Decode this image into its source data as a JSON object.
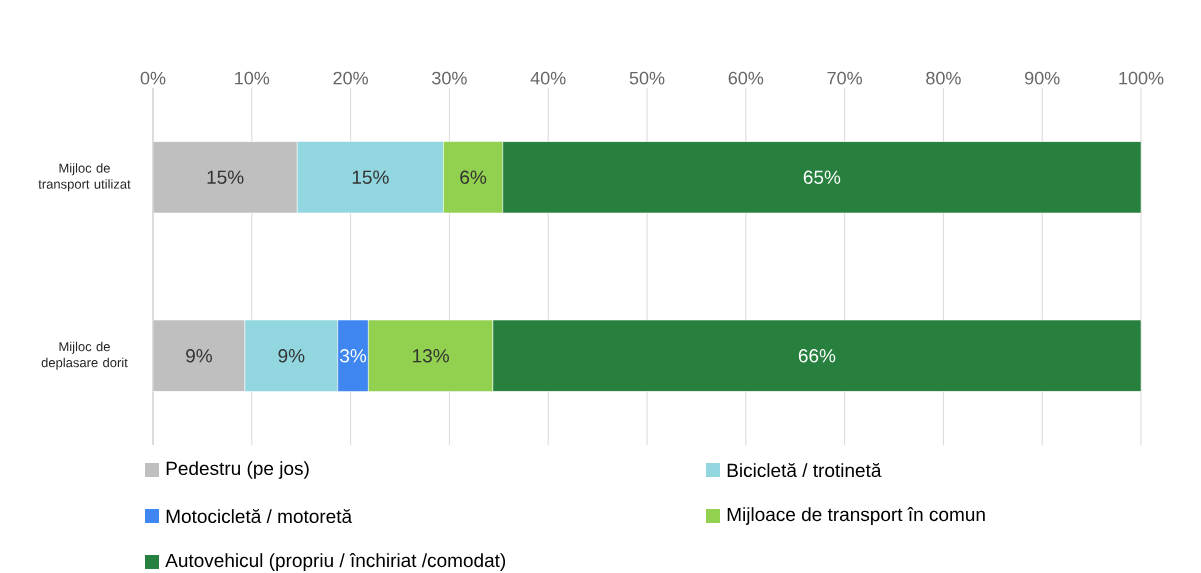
{
  "chart_data": {
    "type": "bar",
    "orientation": "horizontal",
    "stacked": true,
    "categories": [
      "Mijloc de transport utilizat",
      "Mijloc de deplasare dorit"
    ],
    "series": [
      {
        "name": "Pedestru (pe jos)",
        "color": "#bfbfbf",
        "values": [
          14.6,
          9.3
        ],
        "value_labels": [
          "15%",
          "9%"
        ]
      },
      {
        "name": "Bicicletă / trotinetă",
        "color": "#92d7df",
        "values": [
          14.8,
          9.4
        ],
        "value_labels": [
          "15%",
          "9%"
        ]
      },
      {
        "name": "Motocicletă / motoretă",
        "color": "#3f86f0",
        "values": [
          null,
          3.1
        ],
        "value_labels": [
          null,
          "3%"
        ]
      },
      {
        "name": "Mijloace de transport în comun",
        "color": "#92d050",
        "values": [
          6.0,
          12.6
        ],
        "value_labels": [
          "6%",
          "13%"
        ]
      },
      {
        "name": "Autovehicul (propriu / închiriat /comodat)",
        "color": "#28803f",
        "values": [
          64.6,
          65.6
        ],
        "value_labels": [
          "65%",
          "66%"
        ]
      }
    ],
    "xlim": [
      0,
      100
    ],
    "xticks": [
      {
        "value": 0,
        "label": "0%"
      },
      {
        "value": 10,
        "label": "10%"
      },
      {
        "value": 20,
        "label": "20%"
      },
      {
        "value": 30,
        "label": "30%"
      },
      {
        "value": 40,
        "label": "40%"
      },
      {
        "value": 50,
        "label": "50%"
      },
      {
        "value": 60,
        "label": "60%"
      },
      {
        "value": 70,
        "label": "70%"
      },
      {
        "value": 80,
        "label": "80%"
      },
      {
        "value": 90,
        "label": "90%"
      },
      {
        "value": 100,
        "label": "100%"
      }
    ],
    "grid": "x",
    "legend": "bottom"
  }
}
